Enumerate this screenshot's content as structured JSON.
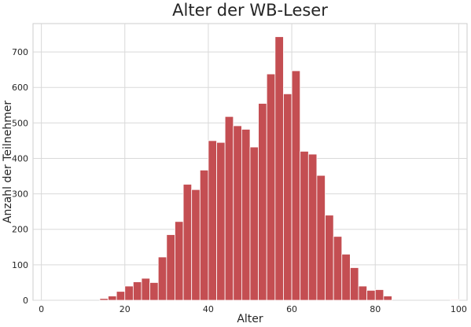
{
  "chart_data": {
    "type": "bar",
    "title": "Alter der WB-Leser",
    "xlabel": "Alter",
    "ylabel": "Anzahl der Teilnehmer",
    "xlim": [
      -2,
      102
    ],
    "ylim": [
      0,
      780
    ],
    "grid": true,
    "bar_color": "#c44e52",
    "bin_width": 2,
    "x_ticks": [
      0,
      20,
      40,
      60,
      80,
      100
    ],
    "y_ticks": [
      0,
      100,
      200,
      300,
      400,
      500,
      600,
      700
    ],
    "bins": [
      {
        "x": 15,
        "value": 5
      },
      {
        "x": 17,
        "value": 12
      },
      {
        "x": 19,
        "value": 25
      },
      {
        "x": 21,
        "value": 40
      },
      {
        "x": 23,
        "value": 52
      },
      {
        "x": 25,
        "value": 62
      },
      {
        "x": 27,
        "value": 50
      },
      {
        "x": 29,
        "value": 122
      },
      {
        "x": 31,
        "value": 185
      },
      {
        "x": 33,
        "value": 222
      },
      {
        "x": 35,
        "value": 327
      },
      {
        "x": 37,
        "value": 312
      },
      {
        "x": 39,
        "value": 367
      },
      {
        "x": 41,
        "value": 450
      },
      {
        "x": 43,
        "value": 445
      },
      {
        "x": 45,
        "value": 518
      },
      {
        "x": 47,
        "value": 492
      },
      {
        "x": 49,
        "value": 482
      },
      {
        "x": 51,
        "value": 432
      },
      {
        "x": 53,
        "value": 555
      },
      {
        "x": 55,
        "value": 638
      },
      {
        "x": 57,
        "value": 743
      },
      {
        "x": 59,
        "value": 582
      },
      {
        "x": 61,
        "value": 647
      },
      {
        "x": 63,
        "value": 420
      },
      {
        "x": 65,
        "value": 412
      },
      {
        "x": 67,
        "value": 352
      },
      {
        "x": 69,
        "value": 240
      },
      {
        "x": 71,
        "value": 180
      },
      {
        "x": 73,
        "value": 130
      },
      {
        "x": 75,
        "value": 92
      },
      {
        "x": 77,
        "value": 40
      },
      {
        "x": 79,
        "value": 28
      },
      {
        "x": 81,
        "value": 30
      },
      {
        "x": 83,
        "value": 12
      },
      {
        "x": 99,
        "value": 2
      }
    ]
  }
}
